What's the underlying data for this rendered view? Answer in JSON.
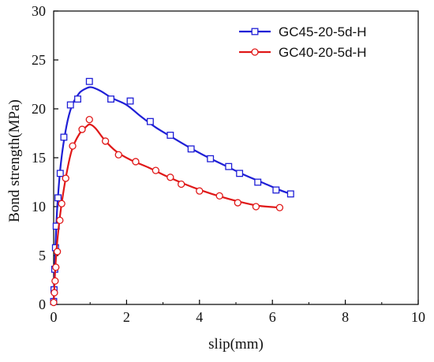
{
  "chart_data": {
    "type": "scatter",
    "xlabel": "slip(mm)",
    "ylabel": "Bond strength(MPa)",
    "xlim": [
      0,
      10
    ],
    "ylim": [
      0,
      30
    ],
    "x_ticks": [
      "0",
      "2",
      "4",
      "6",
      "8",
      "10"
    ],
    "y_ticks": [
      "0",
      "5",
      "10",
      "15",
      "20",
      "25",
      "30"
    ],
    "legend_position": "top-right",
    "grid": false,
    "series": [
      {
        "name": "GC45-20-5d-H",
        "color": "#1f1fd6",
        "marker": "square",
        "points": [
          [
            0.0,
            0.3
          ],
          [
            0.01,
            1.5
          ],
          [
            0.03,
            3.6
          ],
          [
            0.05,
            5.8
          ],
          [
            0.07,
            8.0
          ],
          [
            0.12,
            10.9
          ],
          [
            0.18,
            13.4
          ],
          [
            0.28,
            17.1
          ],
          [
            0.46,
            20.4
          ],
          [
            0.66,
            21.0
          ],
          [
            0.98,
            22.8
          ],
          [
            1.57,
            21.0
          ],
          [
            2.1,
            20.8
          ],
          [
            2.65,
            18.7
          ],
          [
            3.2,
            17.3
          ],
          [
            3.77,
            15.9
          ],
          [
            4.3,
            14.9
          ],
          [
            4.8,
            14.1
          ],
          [
            5.1,
            13.4
          ],
          [
            5.6,
            12.5
          ],
          [
            6.1,
            11.7
          ],
          [
            6.5,
            11.3
          ]
        ],
        "curve": [
          [
            0.0,
            0.0
          ],
          [
            0.02,
            2.5
          ],
          [
            0.05,
            6.0
          ],
          [
            0.1,
            10.0
          ],
          [
            0.2,
            14.5
          ],
          [
            0.35,
            18.2
          ],
          [
            0.5,
            20.3
          ],
          [
            0.7,
            21.6
          ],
          [
            0.9,
            22.1
          ],
          [
            1.05,
            22.2
          ],
          [
            1.3,
            21.8
          ],
          [
            1.6,
            21.1
          ],
          [
            2.0,
            20.4
          ],
          [
            2.4,
            19.2
          ],
          [
            2.8,
            18.1
          ],
          [
            3.2,
            17.2
          ],
          [
            3.7,
            16.1
          ],
          [
            4.2,
            15.1
          ],
          [
            4.7,
            14.2
          ],
          [
            5.2,
            13.3
          ],
          [
            5.7,
            12.5
          ],
          [
            6.2,
            11.7
          ],
          [
            6.5,
            11.3
          ]
        ]
      },
      {
        "name": "GC40-20-5d-H",
        "color": "#e01818",
        "marker": "circle",
        "points": [
          [
            0.0,
            0.2
          ],
          [
            0.02,
            1.2
          ],
          [
            0.04,
            2.4
          ],
          [
            0.06,
            3.8
          ],
          [
            0.1,
            5.4
          ],
          [
            0.17,
            8.6
          ],
          [
            0.22,
            10.3
          ],
          [
            0.33,
            12.9
          ],
          [
            0.52,
            16.2
          ],
          [
            0.78,
            17.9
          ],
          [
            0.98,
            18.9
          ],
          [
            1.42,
            16.7
          ],
          [
            1.78,
            15.3
          ],
          [
            2.25,
            14.6
          ],
          [
            2.8,
            13.7
          ],
          [
            3.2,
            13.0
          ],
          [
            3.5,
            12.3
          ],
          [
            4.0,
            11.6
          ],
          [
            4.55,
            11.1
          ],
          [
            5.05,
            10.4
          ],
          [
            5.55,
            10.0
          ],
          [
            6.2,
            9.9
          ]
        ],
        "curve": [
          [
            0.0,
            0.0
          ],
          [
            0.02,
            1.8
          ],
          [
            0.05,
            4.0
          ],
          [
            0.1,
            6.5
          ],
          [
            0.2,
            9.8
          ],
          [
            0.35,
            13.3
          ],
          [
            0.5,
            15.8
          ],
          [
            0.7,
            17.4
          ],
          [
            0.9,
            18.2
          ],
          [
            1.0,
            18.4
          ],
          [
            1.15,
            18.0
          ],
          [
            1.4,
            16.8
          ],
          [
            1.7,
            15.7
          ],
          [
            2.1,
            14.8
          ],
          [
            2.6,
            14.0
          ],
          [
            3.1,
            13.1
          ],
          [
            3.6,
            12.3
          ],
          [
            4.1,
            11.6
          ],
          [
            4.6,
            11.0
          ],
          [
            5.1,
            10.5
          ],
          [
            5.6,
            10.1
          ],
          [
            6.2,
            9.9
          ]
        ]
      }
    ]
  }
}
